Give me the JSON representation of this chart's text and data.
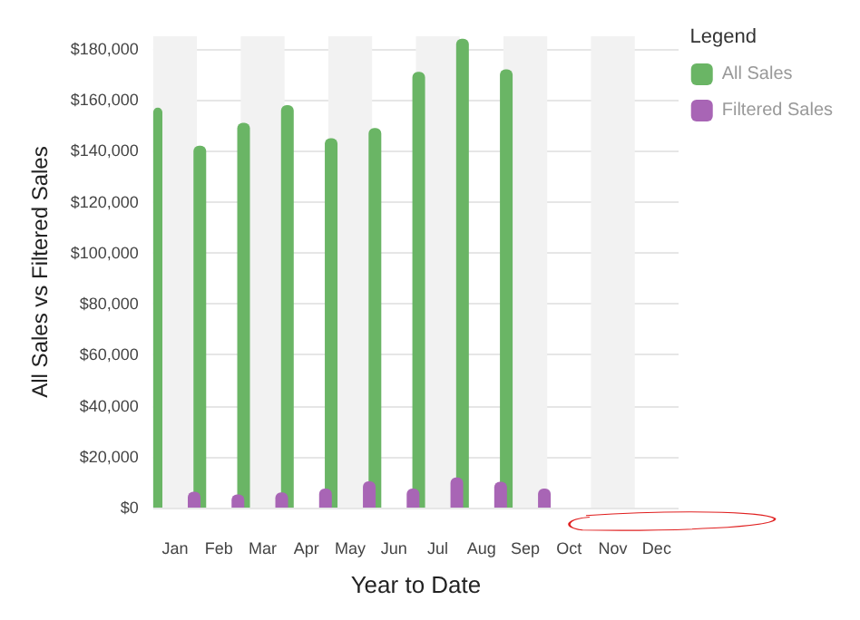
{
  "chart_data": {
    "type": "bar",
    "xlabel": "Year to Date",
    "ylabel": "All Sales vs Filtered Sales",
    "legend_title": "Legend",
    "categories": [
      "Jan",
      "Feb",
      "Mar",
      "Apr",
      "May",
      "Jun",
      "Jul",
      "Aug",
      "Sep",
      "Oct",
      "Nov",
      "Dec"
    ],
    "series": [
      {
        "name": "All Sales",
        "color": "#6ab565",
        "values": [
          157000,
          142000,
          151000,
          158000,
          145000,
          149000,
          171000,
          184000,
          172000,
          0,
          0,
          0
        ]
      },
      {
        "name": "Filtered Sales",
        "color": "#a865b5",
        "values": [
          6200,
          5200,
          6000,
          7500,
          10300,
          7500,
          11800,
          10100,
          7500,
          0,
          0,
          0
        ]
      }
    ],
    "ylim": [
      0,
      185000
    ],
    "yticks": [
      {
        "value": 0,
        "label": "$0"
      },
      {
        "value": 20000,
        "label": "$20,000"
      },
      {
        "value": 40000,
        "label": "$40,000"
      },
      {
        "value": 60000,
        "label": "$60,000"
      },
      {
        "value": 80000,
        "label": "$80,000"
      },
      {
        "value": 100000,
        "label": "$100,000"
      },
      {
        "value": 120000,
        "label": "$120,000"
      },
      {
        "value": 140000,
        "label": "$140,000"
      },
      {
        "value": 160000,
        "label": "$160,000"
      },
      {
        "value": 180000,
        "label": "$180,000"
      }
    ],
    "grid": "y",
    "legend": "top right"
  }
}
